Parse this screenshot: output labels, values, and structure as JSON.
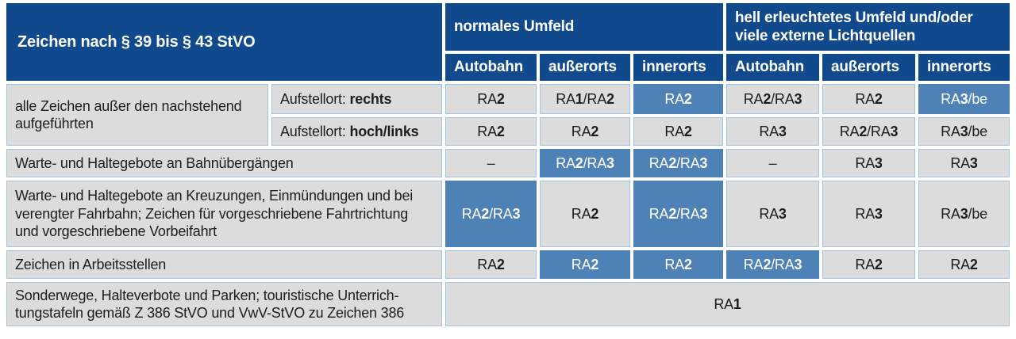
{
  "table": {
    "title": "Zeichen nach § 39 bis § 43 StVO",
    "groups": [
      {
        "label": "normales Umfeld",
        "columns": [
          "Autobahn",
          "außerorts",
          "innerorts"
        ]
      },
      {
        "label": "hell erleuchtetes Umfeld und/oder viele externe Lichtquellen",
        "columns": [
          "Autobahn",
          "außerorts",
          "innerorts"
        ]
      }
    ],
    "rows": [
      {
        "label": "alle Zeichen außer den nachstehend aufgeführten",
        "sub_rows": [
          {
            "label_prefix": "Aufstellort:",
            "label_value": "rechts",
            "cells": [
              {
                "text": "RA2"
              },
              {
                "text": "RA1/RA2"
              },
              {
                "text": "RA2",
                "highlighted": true
              },
              {
                "text": "RA2/RA3"
              },
              {
                "text": "RA2"
              },
              {
                "text": "RA3/be",
                "highlighted": true
              }
            ]
          },
          {
            "label_prefix": "Aufstellort:",
            "label_value": "hoch/links",
            "cells": [
              {
                "text": "RA2"
              },
              {
                "text": "RA2"
              },
              {
                "text": "RA2"
              },
              {
                "text": "RA3"
              },
              {
                "text": "RA2/RA3"
              },
              {
                "text": "RA3/be"
              }
            ]
          }
        ]
      },
      {
        "label": "Warte- und Haltegebote an Bahnübergängen",
        "cells": [
          {
            "text": "–"
          },
          {
            "text": "RA2/RA3",
            "highlighted": true
          },
          {
            "text": "RA2/RA3",
            "highlighted": true
          },
          {
            "text": "–"
          },
          {
            "text": "RA3"
          },
          {
            "text": "RA3"
          }
        ]
      },
      {
        "label": "Warte- und Haltegebote an Kreuzungen, Einmündungen und bei verengter Fahrbahn; Zeichen für vorgeschriebene Fahrtrichtung und vorgeschriebene Vorbeifahrt",
        "cells": [
          {
            "text": "RA2/RA3",
            "highlighted": true
          },
          {
            "text": "RA2"
          },
          {
            "text": "RA2/RA3",
            "highlighted": true
          },
          {
            "text": "RA3"
          },
          {
            "text": "RA3"
          },
          {
            "text": "RA3/be"
          }
        ]
      },
      {
        "label": "Zeichen in Arbeitsstellen",
        "cells": [
          {
            "text": "RA2"
          },
          {
            "text": "RA2",
            "highlighted": true
          },
          {
            "text": "RA2",
            "highlighted": true
          },
          {
            "text": "RA2/RA3",
            "highlighted": true
          },
          {
            "text": "RA2"
          },
          {
            "text": "RA2"
          }
        ]
      },
      {
        "label": "Sonderwege, Halteverbote und Parken; touristische Unterrichtungstafeln gemäß Z 386 StVO und VwV-StVO zu Zeichen 386",
        "lines": [
          "Sonderwege, Halteverbote und Parken; touristische Unterrich-",
          "tungstafeln gemäß Z 386 StVO und VwV-StVO zu Zeichen 386"
        ],
        "cells": [
          {
            "text": "RA1",
            "span": 6
          }
        ]
      }
    ],
    "colors": {
      "header_bg": "#104a8c",
      "highlight_bg": "#4e81b6",
      "row_bg": "#dcdcdc",
      "grid_line": "#a6c3de"
    }
  }
}
